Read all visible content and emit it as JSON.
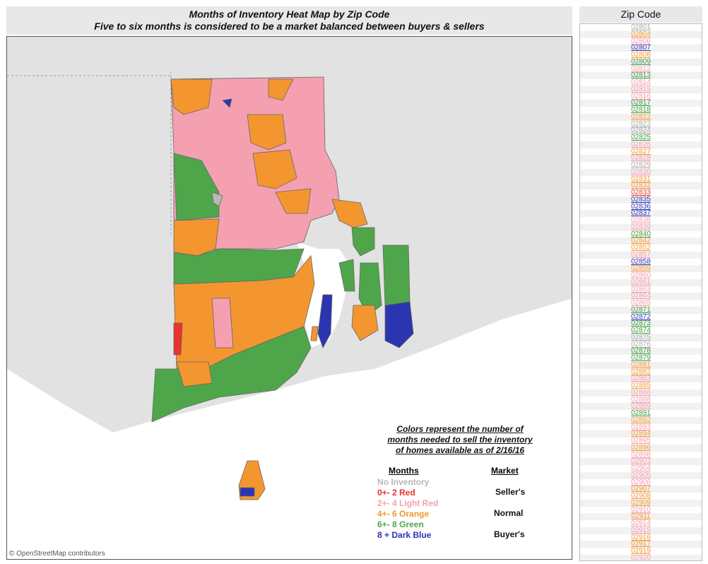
{
  "title_line1": "Months of Inventory Heat Map by Zip Code",
  "title_line2": "Five to six months is considered to be a market balanced between buyers & sellers",
  "attribution": "© OpenStreetMap contributors",
  "legend": {
    "title_l1": "Colors represent the number of",
    "title_l2": "months needed to sell the inventory",
    "title_l3": "of homes available as of 2/16/16",
    "months_header": "Months",
    "market_header": "Market",
    "items": [
      {
        "label": "No Inventory",
        "color": "#b8b8b8"
      },
      {
        "label": "0+- 2 Red",
        "color": "#e8322d"
      },
      {
        "label": "2+- 4 Light Red",
        "color": "#f4a0b0"
      },
      {
        "label": "4+- 6 Orange",
        "color": "#f4962f"
      },
      {
        "label": "6+- 8 Green",
        "color": "#4fa64a"
      },
      {
        "label": "8 +    Dark Blue",
        "color": "#2b35b2"
      }
    ],
    "market_sellers": "Seller's",
    "market_normal": "Normal",
    "market_buyers": "Buyer's"
  },
  "zip_filter": {
    "header": "Zip Code",
    "items": [
      {
        "zip": "02801",
        "color": "#aaaaaa"
      },
      {
        "zip": "02804",
        "color": "#f4962f"
      },
      {
        "zip": "02806",
        "color": "#f49aab"
      },
      {
        "zip": "02807",
        "color": "#2b35b2"
      },
      {
        "zip": "02808",
        "color": "#f4962f"
      },
      {
        "zip": "02809",
        "color": "#3a9a3a"
      },
      {
        "zip": "02812",
        "color": "#f49aab"
      },
      {
        "zip": "02813",
        "color": "#3a9a3a"
      },
      {
        "zip": "02814",
        "color": "#f49aab"
      },
      {
        "zip": "02815",
        "color": "#f49aab"
      },
      {
        "zip": "02816",
        "color": "#f49aab"
      },
      {
        "zip": "02817",
        "color": "#3a9a3a"
      },
      {
        "zip": "02818",
        "color": "#3a9a3a"
      },
      {
        "zip": "02822",
        "color": "#f4962f"
      },
      {
        "zip": "02823",
        "color": "#aaaaaa"
      },
      {
        "zip": "02824",
        "color": "#aaaaaa"
      },
      {
        "zip": "02825",
        "color": "#3a9a3a"
      },
      {
        "zip": "02826",
        "color": "#f49aab"
      },
      {
        "zip": "02827",
        "color": "#f4962f"
      },
      {
        "zip": "02828",
        "color": "#f49aab"
      },
      {
        "zip": "02829",
        "color": "#aaaaaa"
      },
      {
        "zip": "02830",
        "color": "#f49aab"
      },
      {
        "zip": "02831",
        "color": "#f4962f"
      },
      {
        "zip": "02832",
        "color": "#f4962f"
      },
      {
        "zip": "02833",
        "color": "#e8322d"
      },
      {
        "zip": "02835",
        "color": "#2b35b2"
      },
      {
        "zip": "02836",
        "color": "#2b35b2"
      },
      {
        "zip": "02837",
        "color": "#2b35b2"
      },
      {
        "zip": "02838",
        "color": "#f49aab"
      },
      {
        "zip": "02839",
        "color": "#f49aab"
      },
      {
        "zip": "02840",
        "color": "#3a9a3a"
      },
      {
        "zip": "02842",
        "color": "#f4962f"
      },
      {
        "zip": "02852",
        "color": "#f4962f"
      },
      {
        "zip": "02857",
        "color": "#f49aab"
      },
      {
        "zip": "02858",
        "color": "#2b35b2"
      },
      {
        "zip": "02859",
        "color": "#f4962f"
      },
      {
        "zip": "02860",
        "color": "#f49aab"
      },
      {
        "zip": "02861",
        "color": "#f49aab"
      },
      {
        "zip": "02863",
        "color": "#f49aab"
      },
      {
        "zip": "02864",
        "color": "#f49aab"
      },
      {
        "zip": "02865",
        "color": "#f49aab"
      },
      {
        "zip": "02871",
        "color": "#3a9a3a"
      },
      {
        "zip": "02872",
        "color": "#2b35b2"
      },
      {
        "zip": "02873",
        "color": "#3a9a3a"
      },
      {
        "zip": "02874",
        "color": "#3a9a3a"
      },
      {
        "zip": "02875",
        "color": "#aaaaaa"
      },
      {
        "zip": "02876",
        "color": "#aaaaaa"
      },
      {
        "zip": "02878",
        "color": "#3a9a3a"
      },
      {
        "zip": "02879",
        "color": "#3a9a3a"
      },
      {
        "zip": "02881",
        "color": "#f4962f"
      },
      {
        "zip": "02882",
        "color": "#f4962f"
      },
      {
        "zip": "02883",
        "color": "#f49aab"
      },
      {
        "zip": "02885",
        "color": "#f4962f"
      },
      {
        "zip": "02886",
        "color": "#f49aab"
      },
      {
        "zip": "02888",
        "color": "#f49aab"
      },
      {
        "zip": "02889",
        "color": "#f49aab"
      },
      {
        "zip": "02891",
        "color": "#3a9a3a"
      },
      {
        "zip": "02892",
        "color": "#f4962f"
      },
      {
        "zip": "02893",
        "color": "#f49aab"
      },
      {
        "zip": "02894",
        "color": "#f4962f"
      },
      {
        "zip": "02895",
        "color": "#f49aab"
      },
      {
        "zip": "02896",
        "color": "#f4962f"
      },
      {
        "zip": "02898",
        "color": "#f49aab"
      },
      {
        "zip": "02903",
        "color": "#f49aab"
      },
      {
        "zip": "02904",
        "color": "#f49aab"
      },
      {
        "zip": "02905",
        "color": "#f49aab"
      },
      {
        "zip": "02906",
        "color": "#f49aab"
      },
      {
        "zip": "02907",
        "color": "#f4962f"
      },
      {
        "zip": "02908",
        "color": "#f4962f"
      },
      {
        "zip": "02909",
        "color": "#f4962f"
      },
      {
        "zip": "02910",
        "color": "#f49aab"
      },
      {
        "zip": "02911",
        "color": "#f4962f"
      },
      {
        "zip": "02914",
        "color": "#f49aab"
      },
      {
        "zip": "02915",
        "color": "#f49aab"
      },
      {
        "zip": "02916",
        "color": "#f4962f"
      },
      {
        "zip": "02917",
        "color": "#f4962f"
      },
      {
        "zip": "02919",
        "color": "#f4962f"
      },
      {
        "zip": "02920",
        "color": "#f49aab"
      },
      {
        "zip": "02921",
        "color": "#f4962f"
      }
    ]
  }
}
